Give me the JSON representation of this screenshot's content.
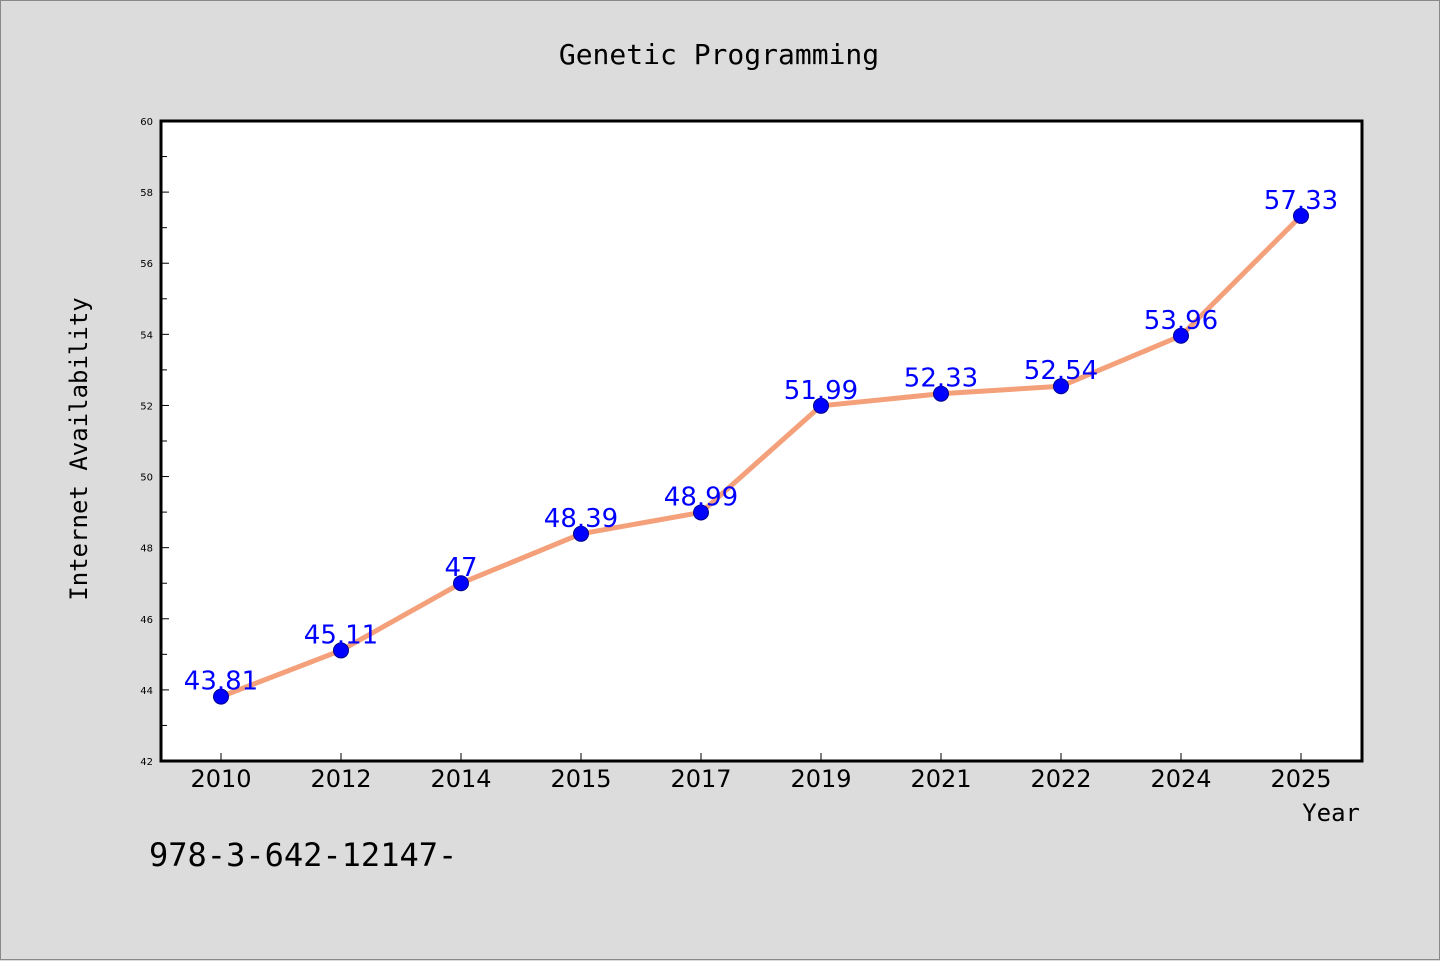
{
  "chart_data": {
    "type": "line",
    "title": "Genetic Programming",
    "xlabel": "Year",
    "ylabel": "Internet Availability",
    "categories": [
      "2010",
      "2012",
      "2014",
      "2015",
      "2017",
      "2019",
      "2021",
      "2022",
      "2024",
      "2025"
    ],
    "series": [
      {
        "values": [
          43.81,
          45.11,
          47,
          48.39,
          48.99,
          51.99,
          52.33,
          52.54,
          53.96,
          57.33
        ],
        "data_labels": [
          "43.81",
          "45.11",
          "47",
          "48.39",
          "48.99",
          "51.99",
          "52.33",
          "52.54",
          "53.96",
          "57.33"
        ],
        "line_color": "#f4a07a",
        "marker_color": "#0000ff"
      }
    ],
    "ylim": [
      42,
      60
    ],
    "yticks": [
      "42",
      "44",
      "46",
      "48",
      "50",
      "52",
      "54",
      "56",
      "58",
      "60"
    ],
    "grid": false,
    "legend": "none",
    "label_color": "#0000ff"
  },
  "footnote": "978-3-642-12147-"
}
